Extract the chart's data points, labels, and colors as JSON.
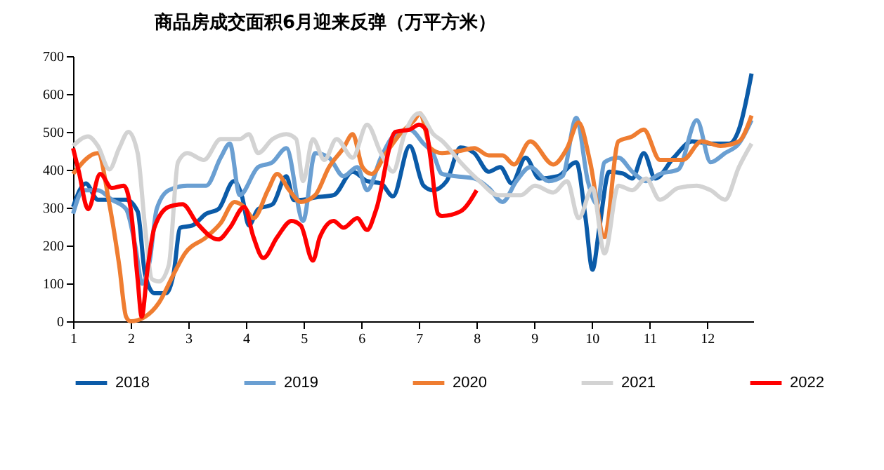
{
  "chart_data": {
    "type": "line",
    "title": "商品房成交面积6月迎来反弹（万平方米）",
    "xlim": [
      1,
      12.8
    ],
    "xticks": [
      1,
      2,
      3,
      4,
      5,
      6,
      7,
      8,
      9,
      10,
      11,
      12
    ],
    "ylim": [
      0,
      700
    ],
    "yticks": [
      0,
      100,
      200,
      300,
      400,
      500,
      600,
      700
    ],
    "grid": false,
    "legend": "bottom",
    "marker": "none",
    "line_style": "solid",
    "series": [
      {
        "name": "2018",
        "color": "#0b5ba8",
        "x": [
          1.0,
          1.22,
          1.43,
          1.67,
          1.92,
          2.12,
          2.25,
          2.41,
          2.61,
          2.74,
          2.86,
          3.07,
          3.31,
          3.52,
          3.79,
          3.93,
          4.05,
          4.21,
          4.46,
          4.7,
          4.83,
          4.99,
          5.2,
          5.52,
          5.85,
          6.1,
          6.34,
          6.55,
          6.84,
          7.08,
          7.24,
          7.48,
          7.72,
          7.96,
          8.21,
          8.41,
          8.61,
          8.85,
          9.09,
          9.41,
          9.73,
          9.89,
          10.01,
          10.13,
          10.3,
          10.54,
          10.7,
          10.9,
          11.1,
          11.42,
          11.74,
          12.06,
          12.38,
          12.55,
          12.77
        ],
        "values": [
          302,
          364,
          321,
          321,
          321,
          290,
          123,
          74,
          74,
          123,
          247,
          253,
          284,
          296,
          370,
          330,
          253,
          296,
          309,
          383,
          320,
          321,
          327,
          333,
          395,
          370,
          364,
          330,
          463,
          358,
          346,
          370,
          459,
          444,
          395,
          407,
          364,
          432,
          377,
          383,
          420,
          272,
          136,
          247,
          395,
          390,
          377,
          444,
          377,
          432,
          475,
          469,
          469,
          506,
          654
        ]
      },
      {
        "name": "2019",
        "color": "#6a9fd2",
        "x": [
          1.0,
          1.18,
          1.43,
          1.67,
          1.92,
          2.08,
          2.2,
          2.33,
          2.45,
          2.66,
          2.98,
          3.31,
          3.56,
          3.72,
          3.89,
          4.21,
          4.46,
          4.7,
          4.99,
          5.2,
          5.44,
          5.69,
          5.93,
          6.1,
          6.34,
          6.59,
          6.84,
          7.08,
          7.24,
          7.4,
          7.64,
          7.96,
          8.21,
          8.45,
          8.69,
          8.93,
          9.25,
          9.49,
          9.73,
          9.93,
          10.09,
          10.22,
          10.46,
          10.7,
          10.94,
          11.18,
          11.5,
          11.82,
          12.06,
          12.31,
          12.55,
          12.77
        ],
        "values": [
          284,
          346,
          346,
          321,
          296,
          198,
          99,
          160,
          296,
          346,
          358,
          358,
          432,
          469,
          333,
          407,
          420,
          457,
          265,
          444,
          432,
          383,
          407,
          346,
          432,
          494,
          506,
          469,
          444,
          389,
          383,
          377,
          352,
          315,
          370,
          407,
          370,
          383,
          537,
          370,
          309,
          420,
          432,
          395,
          370,
          389,
          401,
          531,
          420,
          444,
          469,
          531
        ]
      },
      {
        "name": "2020",
        "color": "#ef7d31",
        "x": [
          1.0,
          1.43,
          1.63,
          1.8,
          1.92,
          2.0,
          2.25,
          2.49,
          2.74,
          2.94,
          3.31,
          3.56,
          3.8,
          3.97,
          4.13,
          4.38,
          4.54,
          4.75,
          4.95,
          5.2,
          5.44,
          5.69,
          5.85,
          6.02,
          6.18,
          6.43,
          6.67,
          6.92,
          7.02,
          7.2,
          7.4,
          7.72,
          7.96,
          8.21,
          8.45,
          8.65,
          8.93,
          9.33,
          9.57,
          9.77,
          9.97,
          10.22,
          10.46,
          10.7,
          10.9,
          11.18,
          11.58,
          11.9,
          12.23,
          12.55,
          12.77
        ],
        "values": [
          389,
          444,
          309,
          148,
          12,
          0,
          12,
          49,
          123,
          179,
          222,
          259,
          315,
          302,
          272,
          346,
          389,
          346,
          315,
          333,
          407,
          457,
          494,
          407,
          389,
          444,
          494,
          531,
          549,
          457,
          444,
          450,
          457,
          438,
          438,
          414,
          475,
          414,
          457,
          525,
          420,
          222,
          475,
          488,
          506,
          426,
          426,
          475,
          463,
          475,
          543
        ]
      },
      {
        "name": "2021",
        "color": "#d3d3d3",
        "x": [
          1.0,
          1.26,
          1.43,
          1.63,
          1.8,
          1.96,
          2.12,
          2.25,
          2.37,
          2.49,
          2.66,
          2.82,
          2.98,
          3.27,
          3.56,
          3.89,
          4.05,
          4.21,
          4.46,
          4.7,
          4.87,
          4.99,
          5.16,
          5.36,
          5.57,
          5.85,
          6.1,
          6.34,
          6.55,
          6.75,
          7.0,
          7.25,
          7.41,
          7.72,
          8.05,
          8.37,
          8.77,
          9.01,
          9.33,
          9.57,
          9.77,
          10.01,
          10.22,
          10.46,
          10.7,
          10.94,
          11.18,
          11.5,
          11.82,
          12.06,
          12.31,
          12.55,
          12.77
        ],
        "values": [
          463,
          488,
          463,
          401,
          457,
          500,
          444,
          247,
          111,
          105,
          148,
          420,
          444,
          426,
          481,
          481,
          494,
          444,
          481,
          494,
          481,
          370,
          481,
          426,
          481,
          432,
          519,
          444,
          395,
          494,
          549,
          494,
          475,
          420,
          370,
          333,
          333,
          358,
          340,
          370,
          272,
          352,
          179,
          358,
          346,
          377,
          321,
          352,
          358,
          346,
          321,
          407,
          469
        ]
      },
      {
        "name": "2022",
        "color": "#ff0000",
        "x": [
          1.0,
          1.1,
          1.26,
          1.47,
          1.67,
          1.88,
          2.0,
          2.12,
          2.19,
          2.29,
          2.41,
          2.66,
          2.9,
          3.15,
          3.52,
          3.72,
          3.97,
          4.13,
          4.3,
          4.54,
          4.79,
          4.95,
          5.16,
          5.28,
          5.52,
          5.69,
          5.93,
          6.1,
          6.26,
          6.59,
          6.84,
          7.0,
          7.12,
          7.2,
          7.33,
          7.4,
          7.72,
          8.0
        ],
        "values": [
          457,
          395,
          296,
          389,
          352,
          358,
          296,
          111,
          12,
          136,
          247,
          302,
          309,
          259,
          216,
          247,
          302,
          222,
          167,
          222,
          265,
          253,
          160,
          222,
          265,
          247,
          272,
          241,
          296,
          500,
          506,
          519,
          506,
          432,
          284,
          278,
          290,
          346
        ]
      }
    ]
  }
}
